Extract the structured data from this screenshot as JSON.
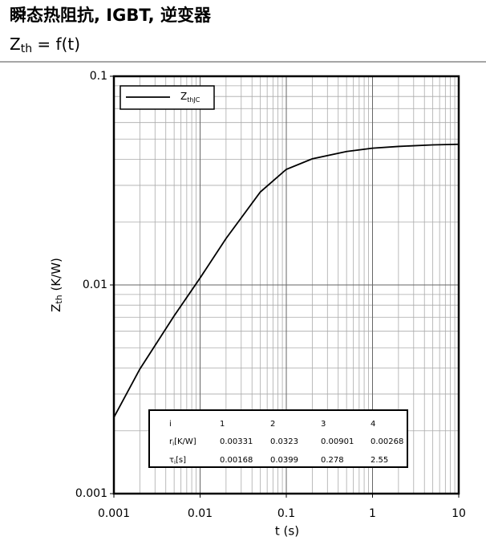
{
  "chart_data": {
    "type": "line",
    "title": "瞬态热阻抗, IGBT, 逆变器",
    "subtitle": {
      "main": "Z",
      "sub": "th",
      "rest": " = f(t)"
    },
    "xlabel": "t (s)",
    "ylabel": {
      "main": "Z",
      "sub": "th",
      "rest": " (K/W)"
    },
    "log_x": true,
    "log_y": true,
    "grid": true,
    "legend": "top-left",
    "xlim": [
      0.001,
      10
    ],
    "xticks": [
      0.001,
      0.01,
      0.1,
      1,
      10
    ],
    "ylim": [
      0.001,
      0.1
    ],
    "yticks": [
      0.001,
      0.01,
      0.1
    ],
    "x": [
      0.001,
      0.002,
      0.005,
      0.01,
      0.02,
      0.05,
      0.1,
      0.2,
      0.5,
      1,
      2,
      5,
      10
    ],
    "series": [
      {
        "name": "Z",
        "name_sub": "thJC",
        "color": "#000000",
        "values": [
          0.00232,
          0.00395,
          0.00711,
          0.0108,
          0.0167,
          0.0279,
          0.0358,
          0.0402,
          0.0436,
          0.0452,
          0.0461,
          0.0469,
          0.0472
        ]
      }
    ],
    "table": {
      "header": [
        "i",
        "1",
        "2",
        "3",
        "4"
      ],
      "rows": [
        {
          "label": [
            "r",
            "i",
            "[K/W]"
          ],
          "values": [
            0.00331,
            0.0323,
            0.00901,
            0.00268
          ]
        },
        {
          "label": [
            "τ",
            "i",
            "[s]"
          ],
          "values": [
            0.00168,
            0.0399,
            0.278,
            2.55
          ]
        }
      ]
    }
  }
}
